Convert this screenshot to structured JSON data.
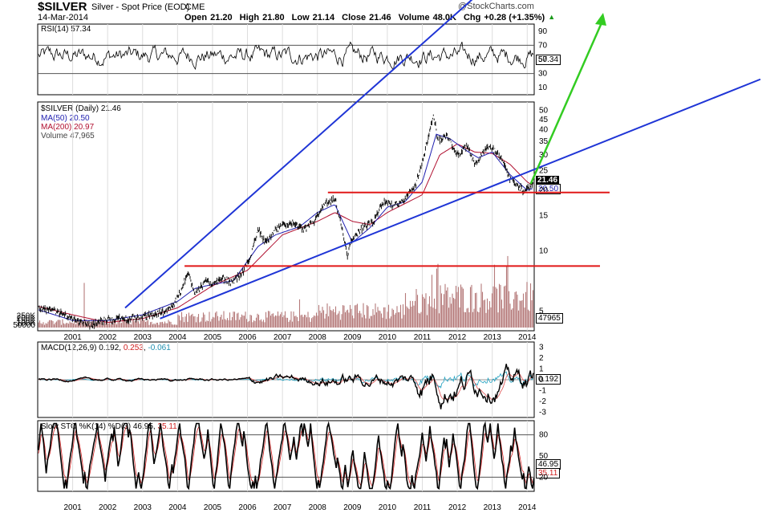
{
  "header": {
    "symbol": "$SILVER",
    "description": "Silver - Spot Price (EOD)",
    "exchange": "CME",
    "date": "14-Mar-2014",
    "brand": "@StockCharts.com",
    "open_label": "Open",
    "open": "21.20",
    "high_label": "High",
    "high": "21.80",
    "low_label": "Low",
    "low": "21.14",
    "close_label": "Close",
    "close": "21.46",
    "volume_label": "Volume",
    "volume": "48.0K",
    "chg_label": "Chg",
    "chg": "+0.28 (+1.35%)"
  },
  "colors": {
    "price": "#000000",
    "ma50": "#1f1fb0",
    "ma200": "#b01030",
    "trendline": "#1f35d6",
    "support": "#e11818",
    "arrow": "#33cc22",
    "volume": "#b57a7a",
    "macd_signal": "#e05050",
    "macd_hist": "#20a0c0"
  },
  "chart_data": [
    {
      "panel": "rsi",
      "type": "line",
      "title": "RSI(14) 57.34",
      "last_value": "57.34",
      "ylim": [
        0,
        100
      ],
      "yticks": [
        "90",
        "70",
        "50",
        "30",
        "10"
      ],
      "yticks_values": [
        90,
        70,
        50,
        30,
        10
      ],
      "grid_lines": [
        70,
        30
      ]
    },
    {
      "panel": "price",
      "type": "line",
      "scale": "log",
      "legend": {
        "main": "$SILVER (Daily) 21.46",
        "ma50": "MA(50) 20.50",
        "ma200": "MA(200) 20.97",
        "volume": "Volume 47,965"
      },
      "last_value": "21.46",
      "ma_last": "20.50",
      "ylim": [
        4,
        55
      ],
      "yticks": [
        "50",
        "45",
        "40",
        "35",
        "30",
        "25",
        "20",
        "15",
        "10",
        "5"
      ],
      "yticks_values": [
        50,
        45,
        40,
        35,
        30,
        25,
        20,
        15,
        10,
        5
      ],
      "volume_ticks": [
        "250K",
        "200K",
        "150K",
        "100K",
        "50000"
      ],
      "volume_ticks_values": [
        250000,
        200000,
        150000,
        100000,
        50000
      ],
      "volume_last": "47965",
      "x_years": [
        "2001",
        "2002",
        "2003",
        "2004",
        "2005",
        "2006",
        "2007",
        "2008",
        "2009",
        "2010",
        "2011",
        "2012",
        "2013",
        "2014"
      ],
      "x_year_values": [
        2001,
        2002,
        2003,
        2004,
        2005,
        2006,
        2007,
        2008,
        2009,
        2010,
        2011,
        2012,
        2013,
        2014
      ],
      "series": [
        {
          "name": "$SILVER",
          "t": [
            2000.0,
            2000.5,
            2001.0,
            2001.5,
            2001.9,
            2002.3,
            2002.7,
            2003.0,
            2003.3,
            2003.6,
            2003.9,
            2004.1,
            2004.3,
            2004.5,
            2004.8,
            2005.0,
            2005.3,
            2005.6,
            2005.9,
            2006.1,
            2006.3,
            2006.5,
            2006.8,
            2007.0,
            2007.3,
            2007.6,
            2007.9,
            2008.2,
            2008.5,
            2008.7,
            2008.85,
            2009.0,
            2009.3,
            2009.6,
            2009.9,
            2010.2,
            2010.5,
            2010.8,
            2011.0,
            2011.2,
            2011.32,
            2011.45,
            2011.7,
            2012.0,
            2012.3,
            2012.5,
            2012.7,
            2012.9,
            2013.1,
            2013.3,
            2013.5,
            2013.7,
            2013.9,
            2014.0,
            2014.2
          ],
          "v": [
            5.2,
            5.0,
            4.6,
            4.3,
            4.5,
            4.6,
            4.6,
            4.7,
            4.8,
            5.0,
            5.4,
            6.3,
            7.8,
            6.2,
            7.0,
            6.9,
            7.2,
            7.0,
            8.0,
            9.5,
            13.0,
            11.0,
            12.5,
            13.4,
            13.8,
            12.7,
            14.0,
            17.0,
            18.0,
            13.0,
            9.5,
            11.5,
            13.0,
            14.0,
            17.5,
            17.0,
            18.0,
            21.0,
            28.0,
            38.0,
            48.0,
            35.0,
            38.0,
            30.0,
            33.0,
            27.0,
            30.0,
            33.0,
            31.0,
            28.0,
            23.0,
            21.5,
            19.8,
            20.5,
            21.46
          ]
        },
        {
          "name": "MA(50)",
          "t": [
            2000.0,
            2001.0,
            2002.0,
            2003.0,
            2004.0,
            2004.5,
            2005.0,
            2005.6,
            2006.3,
            2006.8,
            2007.5,
            2008.0,
            2008.5,
            2009.0,
            2009.5,
            2010.0,
            2010.5,
            2011.0,
            2011.4,
            2011.8,
            2012.2,
            2012.6,
            2013.0,
            2013.5,
            2014.0,
            2014.2
          ],
          "v": [
            5.1,
            4.5,
            4.5,
            4.8,
            5.6,
            6.5,
            6.8,
            7.1,
            10.5,
            12.0,
            13.2,
            15.5,
            17.0,
            11.0,
            13.0,
            16.5,
            17.5,
            22.0,
            38.0,
            36.0,
            32.0,
            29.0,
            31.0,
            24.0,
            20.0,
            20.5
          ]
        },
        {
          "name": "MA(200)",
          "t": [
            2000.0,
            2001.0,
            2002.0,
            2003.0,
            2004.0,
            2005.0,
            2006.0,
            2007.0,
            2008.0,
            2008.5,
            2009.0,
            2009.5,
            2010.0,
            2011.0,
            2011.5,
            2012.0,
            2012.5,
            2013.0,
            2013.5,
            2014.0,
            2014.2
          ],
          "v": [
            5.3,
            4.8,
            4.4,
            4.6,
            5.2,
            6.7,
            8.0,
            12.0,
            14.0,
            15.5,
            14.0,
            13.5,
            15.5,
            19.0,
            30.0,
            34.0,
            31.0,
            30.5,
            27.0,
            22.0,
            20.97
          ]
        }
      ],
      "annotations": [
        {
          "name": "upper-trendline",
          "kind": "line",
          "from": [
            2002.5,
            5.2
          ],
          "to": [
            2014.7,
            400
          ]
        },
        {
          "name": "lower-trendline",
          "kind": "line",
          "from": [
            2003.5,
            4.6
          ],
          "to": [
            2014.7,
            27.5
          ]
        },
        {
          "name": "support-top",
          "kind": "hline",
          "value": 19.5,
          "from": 2008.3,
          "to": 2014.5
        },
        {
          "name": "support-bottom",
          "kind": "hline",
          "value": 8.4,
          "from": 2004.2,
          "to": 2014.5
        },
        {
          "name": "projection-arrow",
          "kind": "arrow",
          "from": [
            2014.1,
            21.5
          ],
          "to": [
            2015.0,
            400
          ]
        }
      ]
    },
    {
      "panel": "macd",
      "type": "line",
      "title_prefix": "MACD(12,26,9)",
      "macd": "0.192",
      "signal": "0.253",
      "hist": "-0.061",
      "last_value": "0.192",
      "ylim": [
        -3.5,
        3.5
      ],
      "yticks": [
        "3",
        "2",
        "1",
        "0",
        "-1",
        "-2",
        "-3"
      ],
      "yticks_values": [
        3,
        2,
        1,
        0,
        -1,
        -2,
        -3
      ]
    },
    {
      "panel": "stoch",
      "type": "line",
      "title_prefix": "Slow STO %K(14) %D(3)",
      "k": "46.95",
      "d": "35.11",
      "k_last": "46.95",
      "d_last": "35.11",
      "ylim": [
        0,
        100
      ],
      "yticks": [
        "80",
        "50",
        "20"
      ],
      "yticks_values": [
        80,
        50,
        20
      ],
      "x_years": [
        "2001",
        "2002",
        "2003",
        "2004",
        "2005",
        "2006",
        "2007",
        "2008",
        "2009",
        "2010",
        "2011",
        "2012",
        "2013",
        "2014"
      ]
    }
  ]
}
